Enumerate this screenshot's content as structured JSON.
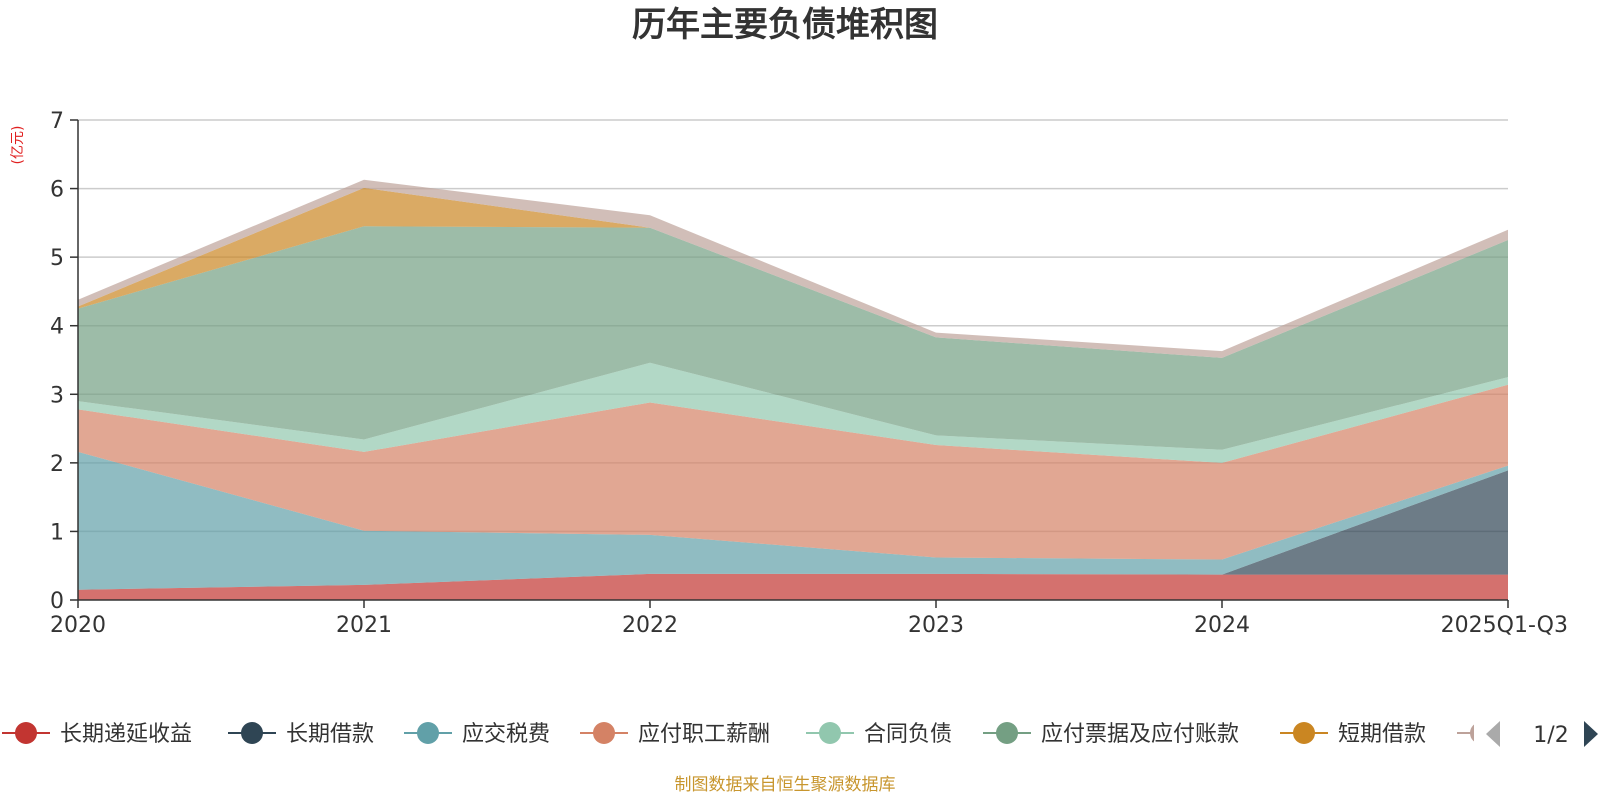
{
  "chart_data": {
    "type": "area",
    "title": "历年主要负债堆积图",
    "unit_label": "(亿元)",
    "categories": [
      "2020",
      "2021",
      "2022",
      "2023",
      "2024",
      "2025Q1-Q3"
    ],
    "ylim": [
      0,
      7
    ],
    "yticks": [
      0,
      1,
      2,
      3,
      4,
      5,
      6,
      7
    ],
    "grid": true,
    "stacked": true,
    "series": [
      {
        "name": "长期递延收益",
        "color": "#c23531",
        "values": [
          0.15,
          0.22,
          0.38,
          0.38,
          0.37,
          0.37
        ]
      },
      {
        "name": "长期借款",
        "color": "#2f4554",
        "values": [
          0.0,
          0.0,
          0.0,
          0.0,
          0.0,
          1.52
        ]
      },
      {
        "name": "应交税费",
        "color": "#61a0a8",
        "values": [
          2.01,
          0.79,
          0.57,
          0.24,
          0.22,
          0.07
        ]
      },
      {
        "name": "应付职工薪酬",
        "color": "#d48265",
        "values": [
          0.62,
          1.15,
          1.93,
          1.64,
          1.41,
          1.18
        ]
      },
      {
        "name": "合同负债",
        "color": "#91c7ae",
        "values": [
          0.12,
          0.18,
          0.58,
          0.14,
          0.19,
          0.11
        ]
      },
      {
        "name": "应付票据及应付账款",
        "color": "#749f83",
        "values": [
          1.35,
          3.11,
          1.97,
          1.43,
          1.34,
          2.0
        ]
      },
      {
        "name": "短期借款",
        "color": "#ca8622",
        "values": [
          0.03,
          0.56,
          0.0,
          0.0,
          0.0,
          0.0
        ]
      },
      {
        "name": "",
        "color": "#bda29a",
        "values": [
          0.1,
          0.12,
          0.18,
          0.07,
          0.1,
          0.15
        ]
      }
    ],
    "legend": {
      "page": "1/2",
      "placement": "bottom"
    }
  },
  "footer": {
    "source": "制图数据来自恒生聚源数据库"
  }
}
